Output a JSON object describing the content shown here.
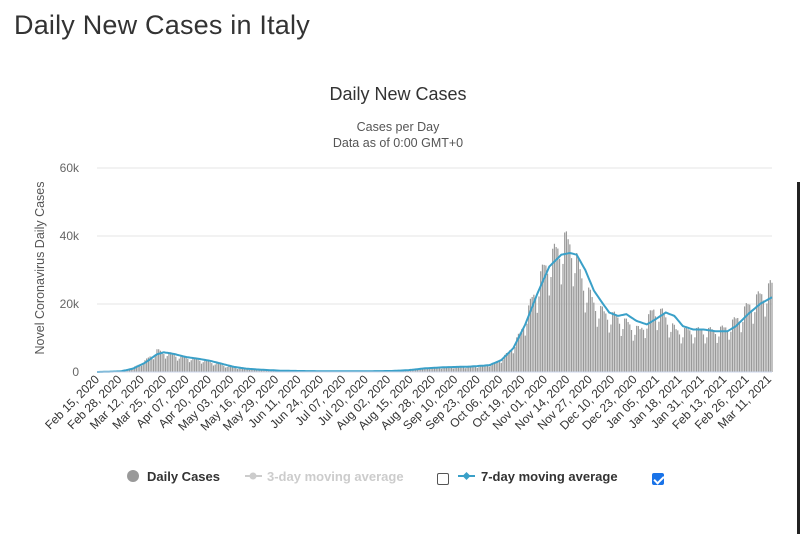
{
  "page": {
    "title": "Daily New Cases in Italy"
  },
  "legend": {
    "items": [
      {
        "label": "Daily Cases",
        "color": "#999999",
        "enabled": true
      },
      {
        "label": "3-day moving average",
        "color": "#cccccc",
        "enabled": false
      },
      {
        "label": "7-day moving average",
        "color": "#3aa0c8",
        "enabled": true
      }
    ],
    "checkbox_3day_checked": false,
    "checkbox_7day_checked": true
  },
  "chart_data": {
    "type": "bar",
    "title": "Daily New Cases",
    "subtitle_line1": "Cases per Day",
    "subtitle_line2": "Data as of 0:00 GMT+0",
    "ylabel": "Novel Coronavirus Daily Cases",
    "ylim": [
      0,
      60000
    ],
    "yticks": [
      0,
      20000,
      40000,
      60000
    ],
    "ytick_labels": [
      "0",
      "20k",
      "40k",
      "60k"
    ],
    "xticks": [
      "Feb 15, 2020",
      "Feb 28, 2020",
      "Mar 12, 2020",
      "Mar 25, 2020",
      "Apr 07, 2020",
      "Apr 20, 2020",
      "May 03, 2020",
      "May 16, 2020",
      "May 29, 2020",
      "Jun 11, 2020",
      "Jun 24, 2020",
      "Jul 07, 2020",
      "Jul 20, 2020",
      "Aug 02, 2020",
      "Aug 15, 2020",
      "Aug 28, 2020",
      "Sep 10, 2020",
      "Sep 23, 2020",
      "Oct 06, 2020",
      "Oct 19, 2020",
      "Nov 01, 2020",
      "Nov 14, 2020",
      "Nov 27, 2020",
      "Dec 10, 2020",
      "Dec 23, 2020",
      "Jan 05, 2021",
      "Jan 18, 2021",
      "Jan 31, 2021",
      "Feb 13, 2021",
      "Feb 26, 2021",
      "Mar 11, 2021"
    ],
    "x_start": "2020-02-15",
    "x_end": "2021-03-15",
    "series_color_bars": "#999999",
    "series_color_line": "#3aa0c8",
    "daily_anchors": [
      [
        "2020-02-15",
        0
      ],
      [
        "2020-02-22",
        100
      ],
      [
        "2020-02-29",
        300
      ],
      [
        "2020-03-07",
        1200
      ],
      [
        "2020-03-14",
        3200
      ],
      [
        "2020-03-21",
        6200
      ],
      [
        "2020-03-28",
        5400
      ],
      [
        "2020-04-04",
        4500
      ],
      [
        "2020-04-11",
        4000
      ],
      [
        "2020-04-18",
        3300
      ],
      [
        "2020-04-25",
        2500
      ],
      [
        "2020-05-02",
        1600
      ],
      [
        "2020-05-09",
        1100
      ],
      [
        "2020-05-16",
        800
      ],
      [
        "2020-05-23",
        600
      ],
      [
        "2020-06-01",
        350
      ],
      [
        "2020-06-15",
        280
      ],
      [
        "2020-07-01",
        200
      ],
      [
        "2020-07-15",
        220
      ],
      [
        "2020-08-01",
        300
      ],
      [
        "2020-08-15",
        600
      ],
      [
        "2020-08-25",
        1200
      ],
      [
        "2020-09-10",
        1500
      ],
      [
        "2020-09-25",
        1700
      ],
      [
        "2020-10-05",
        2600
      ],
      [
        "2020-10-12",
        5500
      ],
      [
        "2020-10-19",
        11000
      ],
      [
        "2020-10-26",
        21000
      ],
      [
        "2020-11-02",
        30000
      ],
      [
        "2020-11-09",
        35000
      ],
      [
        "2020-11-14",
        38000
      ],
      [
        "2020-11-19",
        36000
      ],
      [
        "2020-11-24",
        27000
      ],
      [
        "2020-12-01",
        20000
      ],
      [
        "2020-12-07",
        17000
      ],
      [
        "2020-12-14",
        16000
      ],
      [
        "2020-12-21",
        14000
      ],
      [
        "2020-12-28",
        12000
      ],
      [
        "2021-01-05",
        18000
      ],
      [
        "2021-01-10",
        17000
      ],
      [
        "2021-01-18",
        12000
      ],
      [
        "2021-01-25",
        12000
      ],
      [
        "2021-02-01",
        12000
      ],
      [
        "2021-02-08",
        12000
      ],
      [
        "2021-02-15",
        12500
      ],
      [
        "2021-02-22",
        15000
      ],
      [
        "2021-03-01",
        19000
      ],
      [
        "2021-03-08",
        22000
      ],
      [
        "2021-03-15",
        25000
      ]
    ],
    "avg7_anchors": [
      [
        "2020-02-15",
        0
      ],
      [
        "2020-02-29",
        200
      ],
      [
        "2020-03-07",
        1000
      ],
      [
        "2020-03-14",
        2700
      ],
      [
        "2020-03-21",
        5200
      ],
      [
        "2020-03-25",
        5800
      ],
      [
        "2020-03-31",
        5300
      ],
      [
        "2020-04-07",
        4400
      ],
      [
        "2020-04-14",
        3900
      ],
      [
        "2020-04-21",
        3300
      ],
      [
        "2020-04-28",
        2400
      ],
      [
        "2020-05-05",
        1500
      ],
      [
        "2020-05-12",
        1000
      ],
      [
        "2020-05-20",
        700
      ],
      [
        "2020-06-01",
        380
      ],
      [
        "2020-06-15",
        280
      ],
      [
        "2020-07-01",
        200
      ],
      [
        "2020-07-20",
        220
      ],
      [
        "2020-08-05",
        300
      ],
      [
        "2020-08-15",
        550
      ],
      [
        "2020-08-25",
        1100
      ],
      [
        "2020-09-05",
        1400
      ],
      [
        "2020-09-20",
        1600
      ],
      [
        "2020-10-01",
        2000
      ],
      [
        "2020-10-08",
        3500
      ],
      [
        "2020-10-15",
        7000
      ],
      [
        "2020-10-22",
        14000
      ],
      [
        "2020-10-29",
        23000
      ],
      [
        "2020-11-05",
        31000
      ],
      [
        "2020-11-12",
        34500
      ],
      [
        "2020-11-17",
        35000
      ],
      [
        "2020-11-21",
        34500
      ],
      [
        "2020-11-26",
        30000
      ],
      [
        "2020-12-01",
        24000
      ],
      [
        "2020-12-05",
        21000
      ],
      [
        "2020-12-10",
        17500
      ],
      [
        "2020-12-15",
        16500
      ],
      [
        "2020-12-20",
        17000
      ],
      [
        "2020-12-26",
        15000
      ],
      [
        "2021-01-01",
        14000
      ],
      [
        "2021-01-06",
        15500
      ],
      [
        "2021-01-12",
        17500
      ],
      [
        "2021-01-17",
        16500
      ],
      [
        "2021-01-22",
        13500
      ],
      [
        "2021-01-28",
        12500
      ],
      [
        "2021-02-03",
        12500
      ],
      [
        "2021-02-10",
        12000
      ],
      [
        "2021-02-17",
        12000
      ],
      [
        "2021-02-22",
        13500
      ],
      [
        "2021-03-01",
        17000
      ],
      [
        "2021-03-08",
        20000
      ],
      [
        "2021-03-15",
        22000
      ]
    ]
  }
}
